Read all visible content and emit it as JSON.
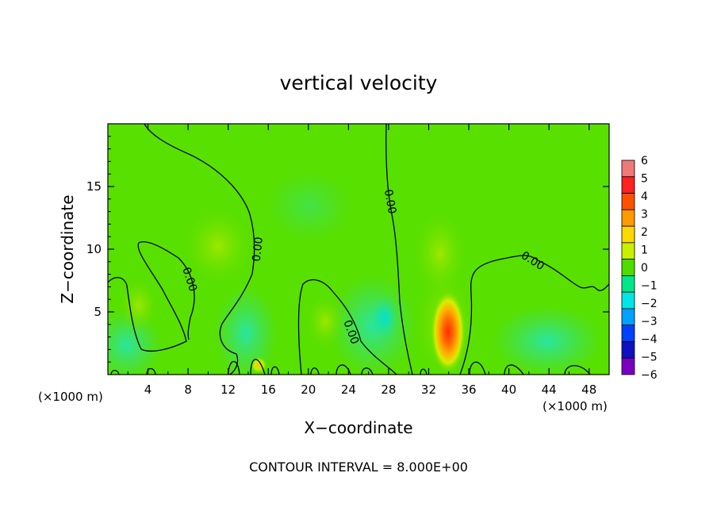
{
  "chart_data": {
    "type": "heatmap",
    "title": "vertical velocity",
    "xlabel": "X−coordinate",
    "ylabel": "Z−coordinate",
    "x_unit_label": "(×1000 m)",
    "z_unit_label": "(×1000 m)",
    "footer": "CONTOUR INTERVAL = 8.000E+00",
    "xlim": [
      0,
      50
    ],
    "ylim": [
      0,
      20
    ],
    "x_ticks": [
      4,
      8,
      12,
      16,
      20,
      24,
      28,
      32,
      36,
      40,
      44,
      48
    ],
    "x_tick_labels": [
      "4",
      "8",
      "12",
      "16",
      "20",
      "24",
      "28",
      "32",
      "36",
      "40",
      "44",
      "48"
    ],
    "y_ticks": [
      5,
      10,
      15
    ],
    "y_tick_labels": [
      "5",
      "10",
      "15"
    ],
    "colorbar": {
      "levels": [
        6,
        5,
        4,
        3,
        2,
        1,
        0,
        -1,
        -2,
        -3,
        -4,
        -5,
        -6
      ],
      "labels": [
        "6",
        "5",
        "4",
        "3",
        "2",
        "1",
        "0",
        "−1",
        "−2",
        "−3",
        "−4",
        "−5",
        "−6"
      ],
      "colors": [
        "#f07878",
        "#ff2020",
        "#ff5000",
        "#ff9a00",
        "#ffd800",
        "#c8f000",
        "#4cdc00",
        "#00e68a",
        "#00e6e6",
        "#00a0ff",
        "#0040ff",
        "#1010c0",
        "#7a00c0"
      ]
    },
    "contour_labels": [
      {
        "text": "0.00",
        "x": 8.2,
        "z": 7.6,
        "rotate": 72
      },
      {
        "text": "0.00",
        "x": 14.9,
        "z": 10,
        "rotate": -84
      },
      {
        "text": "0.00",
        "x": 24.3,
        "z": 3.4,
        "rotate": 70
      },
      {
        "text": "0.00",
        "x": 28.2,
        "z": 13.8,
        "rotate": 80
      },
      {
        "text": "0.00",
        "x": 42.4,
        "z": 9.1,
        "rotate": 32
      }
    ],
    "features": [
      {
        "name": "updraft-core",
        "x": 33.7,
        "z": 3.5,
        "max": 5.5
      },
      {
        "name": "updraft-moderate",
        "x": 15.2,
        "z": 1,
        "max": 3
      }
    ],
    "grid": false
  }
}
